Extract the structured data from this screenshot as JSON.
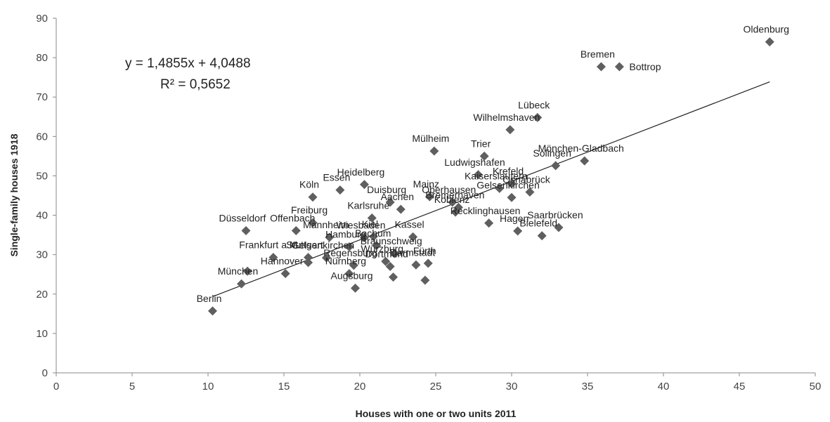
{
  "chart_data": {
    "type": "scatter",
    "title": "",
    "xlabel": "Houses with one or two units 2011",
    "ylabel": "Single-family  houses 1918",
    "xlim": [
      0,
      50
    ],
    "ylim": [
      0,
      90
    ],
    "xticks": [
      0,
      5,
      10,
      15,
      20,
      25,
      30,
      35,
      40,
      45,
      50
    ],
    "yticks": [
      0,
      10,
      20,
      30,
      40,
      50,
      60,
      70,
      80,
      90
    ],
    "grid": false,
    "colors": {
      "marker": "#5f5f5f",
      "trendline": "#222222",
      "axis": "#888888"
    },
    "trendline": {
      "slope": 1.4855,
      "intercept": 4.0488,
      "x_range": [
        10.3,
        47
      ],
      "equation_label": "y = 1,4855x + 4,0488",
      "r2_label": "R² = 0,5652"
    },
    "points": [
      {
        "label": "Oldenburg",
        "x": 47.0,
        "y": 84.0
      },
      {
        "label": "Bremen",
        "x": 35.9,
        "y": 77.7
      },
      {
        "label": "Bottrop",
        "x": 37.1,
        "y": 77.7
      },
      {
        "label": "Lübeck",
        "x": 31.7,
        "y": 64.8
      },
      {
        "label": "Wilhelmshaven",
        "x": 29.9,
        "y": 61.7
      },
      {
        "label": "Trier",
        "x": 28.2,
        "y": 55.0
      },
      {
        "label": "Mülheim",
        "x": 24.9,
        "y": 56.3
      },
      {
        "label": "Ludwigshafen",
        "x": 27.8,
        "y": 50.3
      },
      {
        "label": "Mönchen-Gladbach",
        "x": 34.8,
        "y": 53.8
      },
      {
        "label": "Solingen",
        "x": 32.9,
        "y": 52.6
      },
      {
        "label": "Krefeld",
        "x": 30.0,
        "y": 48.0
      },
      {
        "label": "Kaiserslautern",
        "x": 29.2,
        "y": 46.8
      },
      {
        "label": "Gelsenkirchen",
        "x": 30.0,
        "y": 44.5
      },
      {
        "label": "Osnabrück",
        "x": 31.2,
        "y": 45.9
      },
      {
        "label": "Heidelberg",
        "x": 20.3,
        "y": 47.8
      },
      {
        "label": "Essen",
        "x": 18.7,
        "y": 46.4
      },
      {
        "label": "Köln",
        "x": 16.9,
        "y": 44.6
      },
      {
        "label": "Mainz",
        "x": 24.6,
        "y": 44.7
      },
      {
        "label": "Oberhausen",
        "x": 26.1,
        "y": 43.3
      },
      {
        "label": "Bremerhaven",
        "x": 26.5,
        "y": 42.0
      },
      {
        "label": "Duisburg",
        "x": 22.0,
        "y": 43.3
      },
      {
        "label": "Aachen",
        "x": 22.7,
        "y": 41.5
      },
      {
        "label": "Karlsruhe",
        "x": 20.8,
        "y": 39.3
      },
      {
        "label": "Koblenz",
        "x": 26.3,
        "y": 40.8
      },
      {
        "label": "Recklinghausen",
        "x": 28.5,
        "y": 38.0
      },
      {
        "label": "Saarbrücken",
        "x": 33.1,
        "y": 36.9
      },
      {
        "label": "Bielefeld",
        "x": 32.0,
        "y": 34.8
      },
      {
        "label": "Hagen",
        "x": 30.4,
        "y": 36.0
      },
      {
        "label": "Freiburg",
        "x": 16.9,
        "y": 38.1
      },
      {
        "label": "Düsseldorf",
        "x": 12.5,
        "y": 36.1
      },
      {
        "label": "Offenbach",
        "x": 15.8,
        "y": 36.1
      },
      {
        "label": "Mannheim",
        "x": 18.0,
        "y": 34.4
      },
      {
        "label": "Kiel",
        "x": 20.9,
        "y": 34.6
      },
      {
        "label": "Wiesbaden",
        "x": 20.3,
        "y": 34.3
      },
      {
        "label": "Kassel",
        "x": 23.5,
        "y": 34.5
      },
      {
        "label": "Hamburg",
        "x": 19.3,
        "y": 32.0
      },
      {
        "label": "Bochum",
        "x": 21.1,
        "y": 32.3
      },
      {
        "label": "Stuttgart",
        "x": 16.6,
        "y": 29.3
      },
      {
        "label": "Gelsenkirchen",
        "x": 17.8,
        "y": 29.2
      },
      {
        "label": "Braunschweig",
        "x": 22.3,
        "y": 30.3
      },
      {
        "label": "Würzburg",
        "x": 21.7,
        "y": 28.3
      },
      {
        "label": "Fürth",
        "x": 24.5,
        "y": 27.8
      },
      {
        "label": "Frankfurt a.M.",
        "x": 14.3,
        "y": 29.3
      },
      {
        "label": "Regensburg",
        "x": 19.6,
        "y": 27.3
      },
      {
        "label": "Hannover",
        "x": 15.1,
        "y": 25.2
      },
      {
        "label": "Nürnberg",
        "x": 19.3,
        "y": 25.2
      },
      {
        "label": "Dortmund",
        "x": 22.0,
        "y": 27.0
      },
      {
        "label": "Darmstadt",
        "x": 23.7,
        "y": 27.4
      },
      {
        "label": "München",
        "x": 12.2,
        "y": 22.6
      },
      {
        "label": "Augsburg",
        "x": 19.7,
        "y": 21.5
      },
      {
        "label": "Berlin",
        "x": 10.3,
        "y": 15.7
      },
      {
        "label": "",
        "x": 12.6,
        "y": 25.8
      },
      {
        "label": "",
        "x": 16.6,
        "y": 28.0
      },
      {
        "label": "",
        "x": 22.2,
        "y": 24.3
      },
      {
        "label": "",
        "x": 24.3,
        "y": 23.5
      }
    ]
  }
}
